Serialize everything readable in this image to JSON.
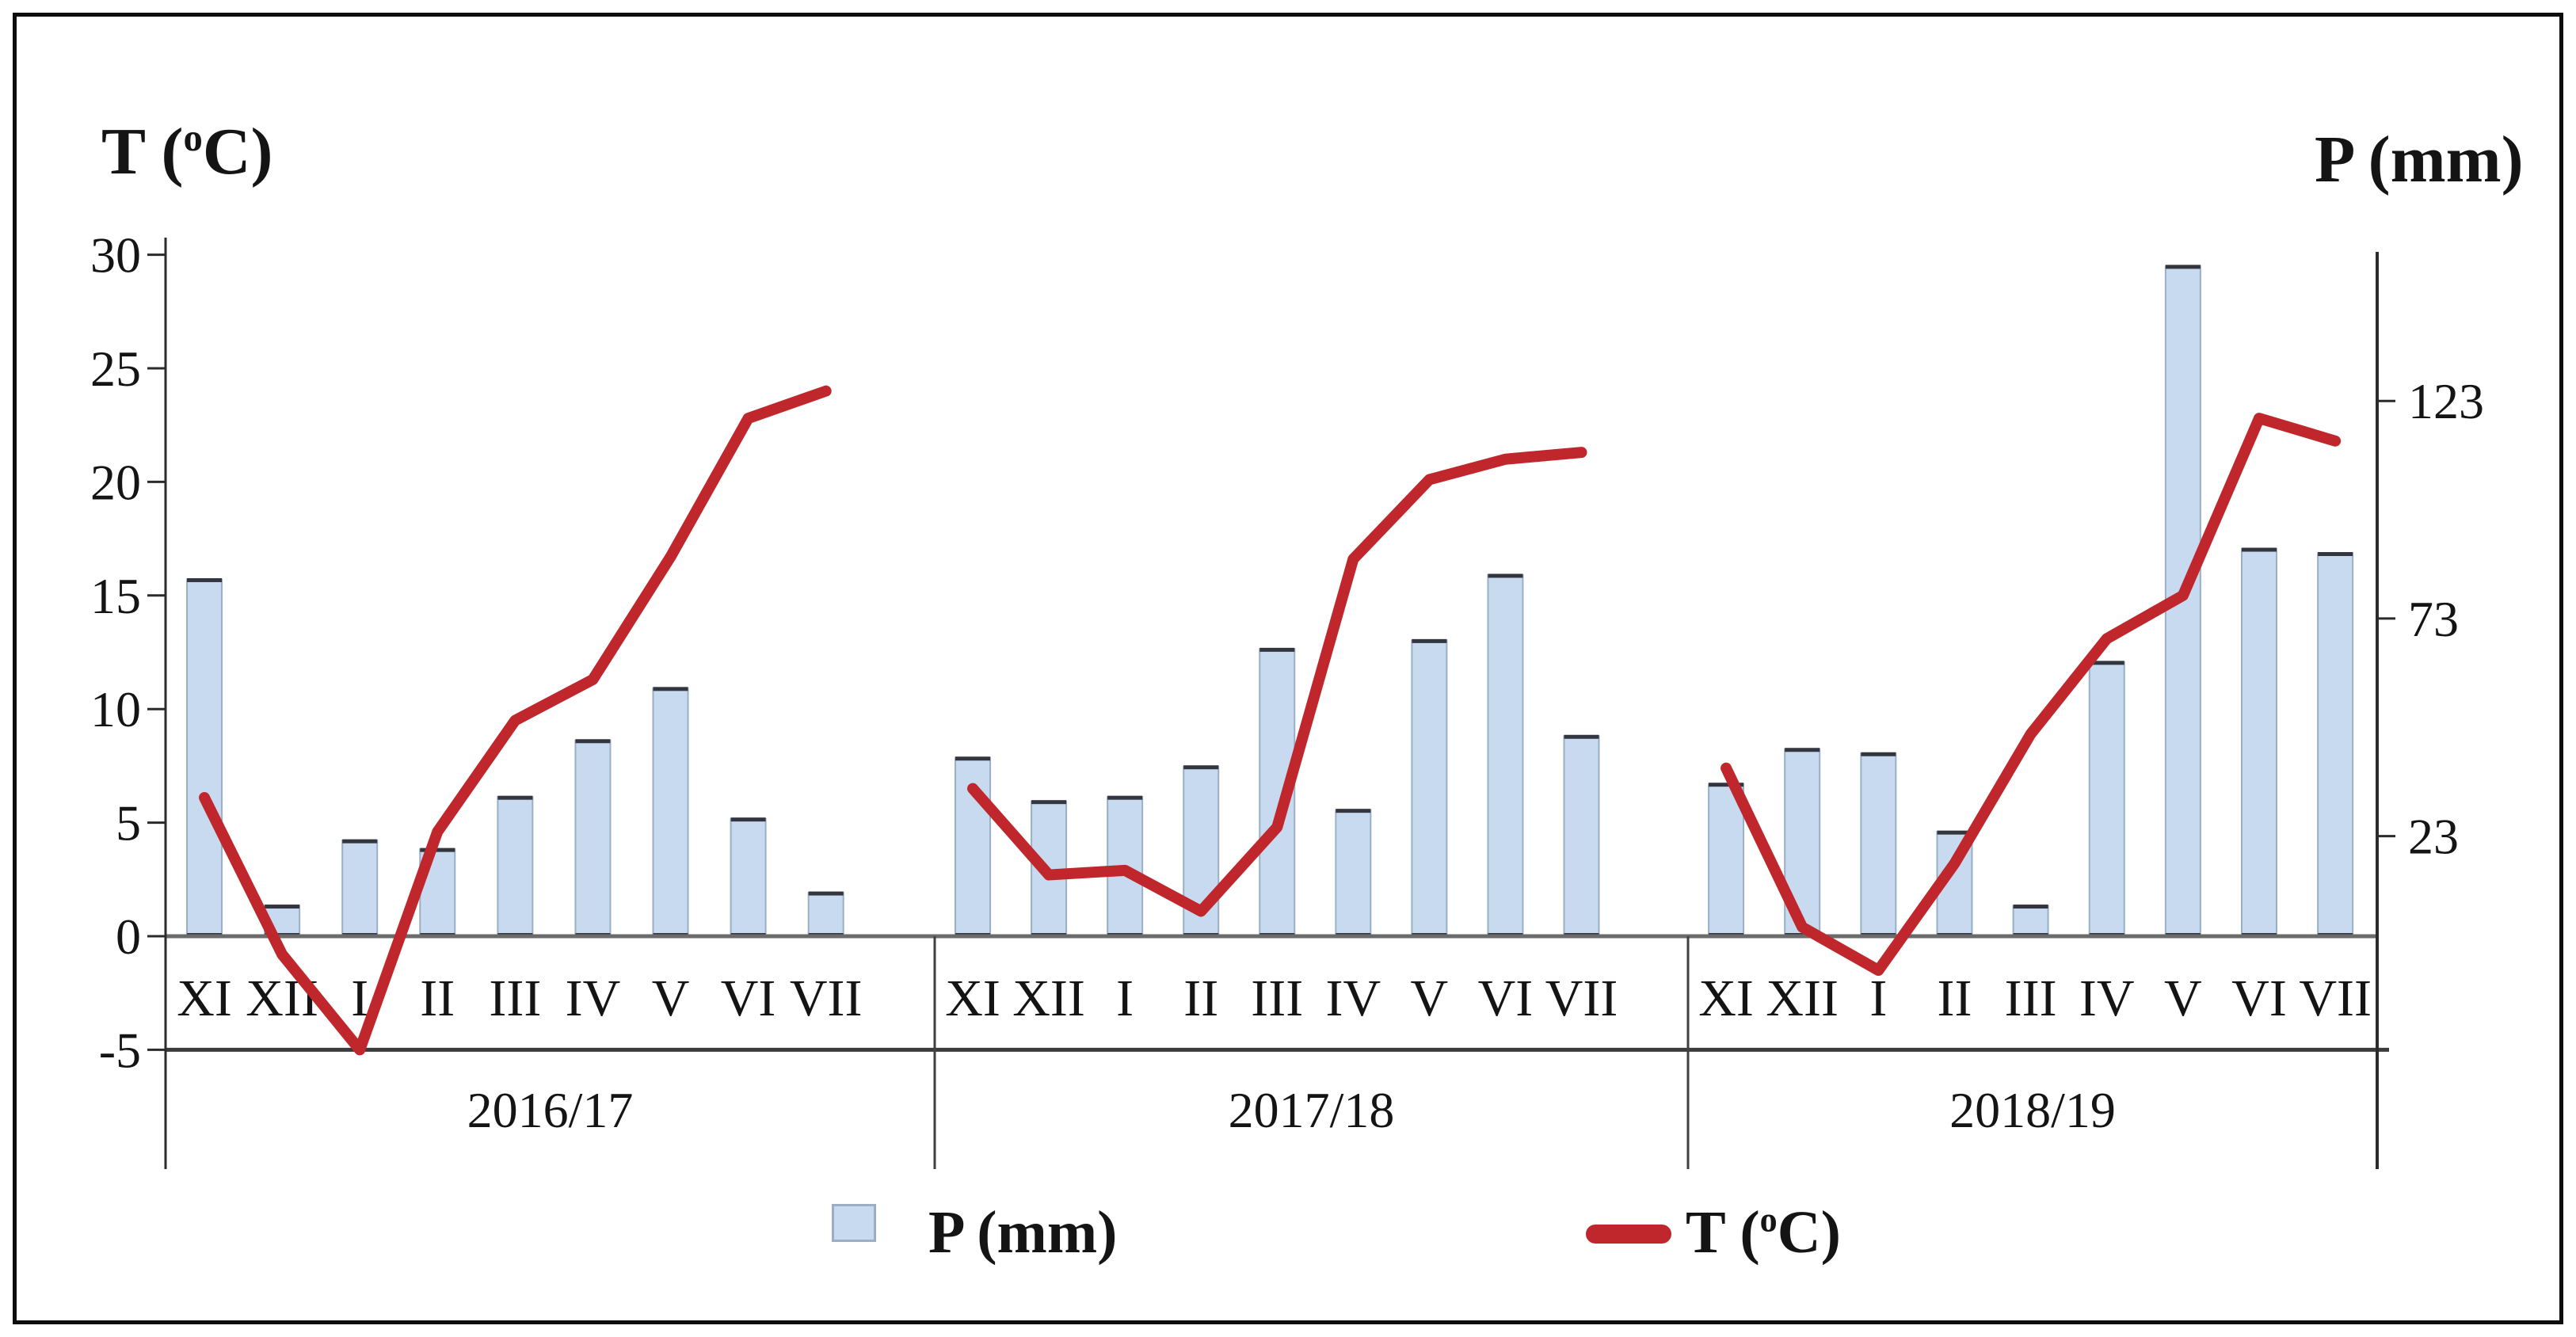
{
  "chart_data": {
    "type": "bar",
    "overlay_type": "line",
    "month_labels": [
      "XI",
      "XII",
      "I",
      "II",
      "III",
      "IV",
      "V",
      "VI",
      "VII"
    ],
    "groups": [
      {
        "year_label": "2016/17",
        "precip_mm": [
          82,
          7,
          22,
          20,
          32,
          45,
          57,
          27,
          10
        ],
        "temp_c": [
          6.1,
          -0.8,
          -5.0,
          4.6,
          9.5,
          11.3,
          16.7,
          22.8,
          24.0
        ]
      },
      {
        "year_label": "2017/18",
        "precip_mm": [
          41,
          31,
          32,
          39,
          66,
          29,
          68,
          83,
          46
        ],
        "temp_c": [
          6.5,
          2.7,
          2.9,
          1.1,
          4.8,
          16.6,
          20.1,
          21.0,
          21.3
        ]
      },
      {
        "year_label": "2018/19",
        "precip_mm": [
          35,
          43,
          42,
          24,
          7,
          63,
          154,
          89,
          88
        ],
        "temp_c": [
          7.4,
          0.4,
          -1.5,
          3.2,
          8.9,
          13.1,
          15.0,
          22.8,
          21.8
        ]
      }
    ],
    "left_axis": {
      "label_pre": "T (",
      "label_sup": "o",
      "label_post": "C)",
      "ticks": [
        30,
        25,
        20,
        15,
        10,
        5,
        0,
        -5
      ],
      "range": [
        -5,
        30
      ]
    },
    "right_axis": {
      "label": "P (mm)",
      "ticks": [
        123,
        73,
        23
      ],
      "range_mm": [
        0,
        157
      ],
      "mm_per_degC": 5.22
    },
    "legend": {
      "bar_label": "P (mm)",
      "line_label_pre": "T (",
      "line_label_sup": "o",
      "line_label_post": "C)"
    },
    "grid": "off",
    "legend_position": "bottom-center",
    "colors": {
      "bar_fill": "#C7DAEF",
      "bar_border": "#9AAFC6",
      "bar_cap": "#33353F",
      "temp_line": "#C0272D",
      "axis_line": "#2B2B2B",
      "baseline": "#6B6B6B",
      "band_line": "#3B3B3B",
      "text": "#141414"
    }
  }
}
